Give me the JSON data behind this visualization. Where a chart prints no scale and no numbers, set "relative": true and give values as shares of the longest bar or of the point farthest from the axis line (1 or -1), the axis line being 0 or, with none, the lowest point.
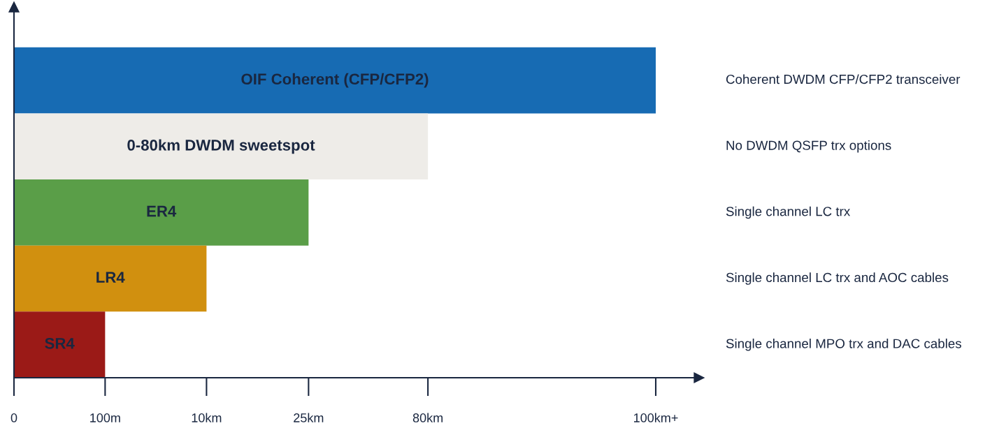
{
  "chart_data": {
    "type": "bar",
    "orientation": "horizontal",
    "relative": true,
    "categories": [
      "OIF Coherent (CFP/CFP2)",
      "0-80km DWDM sweetspot",
      "ER4",
      "LR4",
      "SR4"
    ],
    "values": [
      1,
      0.645,
      0.459,
      0.3,
      0.142
    ],
    "colors": [
      "#176bb3",
      "#eeece8",
      "#5a9e48",
      "#d1900f",
      "#9b1a17"
    ],
    "annotations": [
      "Coherent DWDM CFP/CFP2 transceiver",
      "No DWDM QSFP trx options",
      "Single channel LC trx",
      "Single channel LC trx and AOC cables",
      "Single channel MPO trx and DAC cables",
      "0",
      "100m",
      "10km",
      "25km",
      "80km",
      "100km+"
    ],
    "grid": false
  }
}
